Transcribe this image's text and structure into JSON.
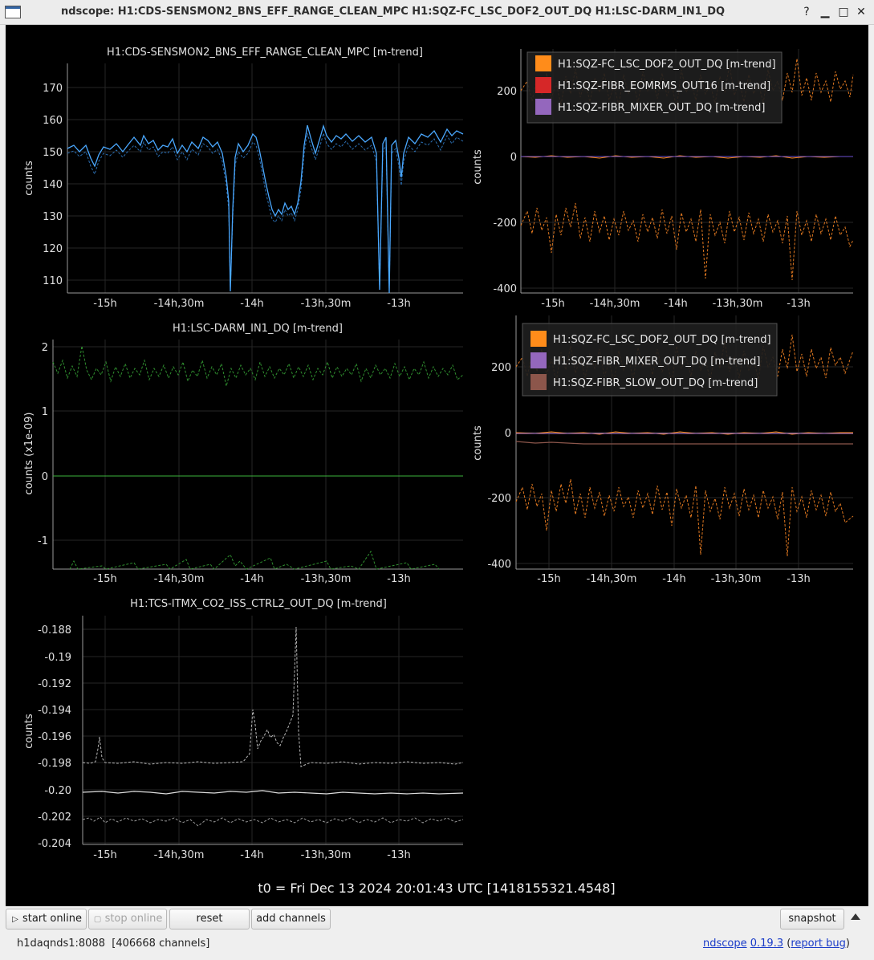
{
  "window": {
    "title": "ndscope: H1:CDS-SENSMON2_BNS_EFF_RANGE_CLEAN_MPC H1:SQZ-FC_LSC_DOF2_OUT_DQ H1:LSC-DARM_IN1_DQ"
  },
  "colors": {
    "background": "#000000",
    "axis": "#8a8a8a",
    "grid": "#2a2a2a",
    "label": "#e0e0e0"
  },
  "plots": [
    {
      "id": "bns-range",
      "title": "H1:CDS-SENSMON2_BNS_EFF_RANGE_CLEAN_MPC [m-trend]",
      "ylabel": "counts",
      "yticks": [
        "170",
        "160",
        "150",
        "140",
        "130",
        "120",
        "110"
      ],
      "xticks": [
        "-15h",
        "-14h,30m",
        "-14h",
        "-13h,30m",
        "-13h"
      ],
      "color": "#4aa8ff"
    },
    {
      "id": "sqz-top",
      "title": "",
      "ylabel": "counts",
      "yticks": [
        "200",
        "0",
        "-200",
        "-400"
      ],
      "xticks": [
        "-15h",
        "-14h,30m",
        "-14h",
        "-13h,30m",
        "-13h"
      ],
      "legend": [
        {
          "label": "H1:SQZ-FC_LSC_DOF2_OUT_DQ [m-trend]",
          "color": "#ff8c1a"
        },
        {
          "label": "H1:SQZ-FIBR_EOMRMS_OUT16 [m-trend]",
          "color": "#d62728"
        },
        {
          "label": "H1:SQZ-FIBR_MIXER_OUT_DQ [m-trend]",
          "color": "#9467bd"
        }
      ]
    },
    {
      "id": "darm",
      "title": "H1:LSC-DARM_IN1_DQ [m-trend]",
      "ylabel": "counts (x1e-09)",
      "yticks": [
        "2",
        "1",
        "0",
        "-1"
      ],
      "xticks": [
        "-15h",
        "-14h,30m",
        "-14h",
        "-13h,30m",
        "-13h"
      ],
      "color": "#2ca02c"
    },
    {
      "id": "sqz-bottom",
      "title": "",
      "ylabel": "counts",
      "yticks": [
        "200",
        "0",
        "-200",
        "-400"
      ],
      "xticks": [
        "-15h",
        "-14h,30m",
        "-14h",
        "-13h,30m",
        "-13h"
      ],
      "legend": [
        {
          "label": "H1:SQZ-FC_LSC_DOF2_OUT_DQ [m-trend]",
          "color": "#ff8c1a"
        },
        {
          "label": "H1:SQZ-FIBR_MIXER_OUT_DQ [m-trend]",
          "color": "#9467bd"
        },
        {
          "label": "H1:SQZ-FIBR_SLOW_OUT_DQ [m-trend]",
          "color": "#8c564b"
        }
      ]
    },
    {
      "id": "tcs",
      "title": "H1:TCS-ITMX_CO2_ISS_CTRL2_OUT_DQ [m-trend]",
      "ylabel": "counts",
      "yticks": [
        "-0.188",
        "-0.19",
        "-0.192",
        "-0.194",
        "-0.196",
        "-0.198",
        "-0.20",
        "-0.202",
        "-0.204"
      ],
      "xticks": [
        "-15h",
        "-14h,30m",
        "-14h",
        "-13h,30m",
        "-13h"
      ],
      "color": "#c8c8c8"
    }
  ],
  "t0_label": "t0 = Fri Dec 13 2024 20:01:43 UTC [1418155321.4548]",
  "toolbar": {
    "start_online": "start online",
    "stop_online": "stop online",
    "reset": "reset",
    "add_channels": "add channels",
    "snapshot": "snapshot"
  },
  "status": {
    "server": "h1daqnds1:8088  [406668 channels]",
    "app_name": "ndscope",
    "version": "0.19.3",
    "report_bug": "report bug"
  }
}
